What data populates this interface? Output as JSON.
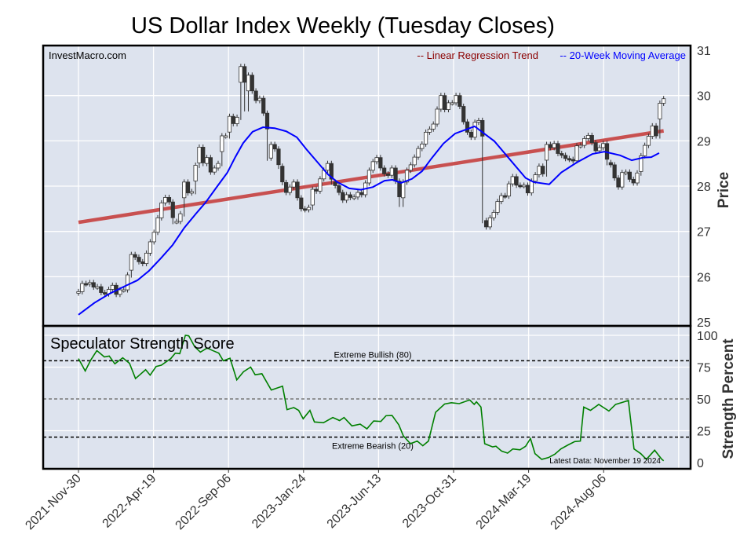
{
  "chart_data": [
    {
      "type": "candlestick",
      "title": "US Dollar Index Weekly (Tuesday Closes)",
      "watermark": "InvestMacro.com",
      "ylabel": "Price",
      "ylim": [
        25,
        31
      ],
      "yticks": [
        "25",
        "26",
        "27",
        "28",
        "29",
        "30",
        "31"
      ],
      "grid": true,
      "legend": {
        "placement": "top-right",
        "entries": [
          {
            "label": "-- Linear Regression Trend",
            "color": "#8b0000"
          },
          {
            "label": "-- 20-Week Moving Average",
            "color": "#0000ff"
          }
        ]
      },
      "x_start": "2021-Nov-30",
      "x_end": "2024-Nov-19",
      "total_weeks": 156,
      "xtick_labels": [
        "2021-Nov-30",
        "2022-Apr-19",
        "2022-Sep-06",
        "2023-Jan-24",
        "2023-Jun-13",
        "2023-Oct-31",
        "2024-Mar-19",
        "2024-Aug-06"
      ],
      "xtick_weeks": [
        0,
        20,
        40,
        60,
        80,
        100,
        120,
        140
      ],
      "weekly_closes": [
        25.67,
        25.85,
        25.84,
        25.87,
        25.77,
        25.78,
        25.65,
        25.62,
        25.72,
        25.81,
        25.61,
        25.71,
        25.71,
        26.04,
        26.49,
        26.43,
        26.33,
        26.29,
        26.52,
        26.77,
        26.98,
        27.3,
        27.63,
        27.75,
        27.65,
        27.22,
        27.22,
        27.39,
        28.09,
        27.85,
        27.88,
        28.46,
        28.86,
        28.5,
        28.63,
        28.31,
        28.4,
        28.5,
        29.11,
        29.11,
        29.54,
        29.38,
        29.52,
        30.64,
        29.71,
        30.45,
        30.1,
        29.89,
        29.94,
        29.61,
        28.62,
        28.92,
        28.82,
        28.44,
        28.08,
        27.86,
        27.98,
        28.09,
        27.74,
        27.5,
        27.48,
        27.53,
        27.93,
        27.89,
        28.16,
        28.35,
        28.5,
        28.09,
        28.01,
        27.86,
        27.69,
        27.81,
        27.75,
        27.76,
        27.86,
        27.81,
        28.07,
        28.35,
        28.54,
        28.63,
        28.4,
        28.27,
        28.24,
        28.4,
        28.11,
        27.6,
        28.09,
        28.35,
        28.47,
        28.64,
        28.83,
        28.93,
        29.19,
        29.26,
        29.37,
        29.7,
        30.0,
        29.69,
        29.84,
        29.84,
        30.0,
        29.76,
        29.42,
        29.19,
        29.08,
        29.41,
        29.45,
        27.24,
        27.1,
        27.3,
        27.42,
        27.66,
        27.79,
        27.78,
        28.05,
        28.21,
        28.02,
        28.01,
        28.02,
        27.85,
        28.11,
        28.25,
        28.44,
        28.27,
        28.92,
        28.85,
        28.94,
        28.72,
        28.68,
        28.61,
        28.59,
        28.56,
        28.89,
        28.9,
        29.05,
        29.12,
        28.96,
        28.78,
        28.85,
        28.94,
        28.52,
        28.47,
        28.18,
        27.98,
        28.3,
        28.31,
        28.15,
        28.07,
        28.29,
        28.67,
        28.9,
        29.1,
        29.33,
        29.11,
        29.83,
        29.93
      ],
      "regression_trend": {
        "start": 27.2,
        "end": 29.22
      },
      "moving_average_20w": [
        [
          0,
          25.16
        ],
        [
          4.2,
          25.42
        ],
        [
          8.4,
          25.63
        ],
        [
          12.6,
          25.8
        ],
        [
          15.7,
          25.92
        ],
        [
          18.8,
          26.13
        ],
        [
          22,
          26.41
        ],
        [
          25.1,
          26.7
        ],
        [
          28.2,
          27.08
        ],
        [
          31.4,
          27.4
        ],
        [
          33.9,
          27.64
        ],
        [
          36.6,
          27.95
        ],
        [
          39.7,
          28.3
        ],
        [
          41.8,
          28.64
        ],
        [
          43.9,
          28.95
        ],
        [
          46.4,
          29.2
        ],
        [
          49.2,
          29.3
        ],
        [
          52.3,
          29.28
        ],
        [
          55.4,
          29.21
        ],
        [
          58.2,
          29.08
        ],
        [
          60.7,
          28.82
        ],
        [
          63.8,
          28.52
        ],
        [
          66.5,
          28.26
        ],
        [
          69,
          28.09
        ],
        [
          72.2,
          27.95
        ],
        [
          75.3,
          27.92
        ],
        [
          78.5,
          27.98
        ],
        [
          81.6,
          28.12
        ],
        [
          83.7,
          28.14
        ],
        [
          86,
          28.07
        ],
        [
          88.9,
          28.16
        ],
        [
          91.6,
          28.33
        ],
        [
          94.1,
          28.61
        ],
        [
          97.3,
          28.94
        ],
        [
          100.4,
          29.16
        ],
        [
          105.6,
          29.32
        ],
        [
          110.9,
          28.99
        ],
        [
          115.1,
          28.58
        ],
        [
          119.2,
          28.18
        ],
        [
          121.3,
          28.09
        ],
        [
          125.5,
          28.04
        ],
        [
          128.7,
          28.3
        ],
        [
          132.8,
          28.52
        ],
        [
          137,
          28.71
        ],
        [
          140.2,
          28.76
        ],
        [
          144.4,
          28.68
        ],
        [
          147.5,
          28.57
        ],
        [
          150.6,
          28.63
        ],
        [
          152.7,
          28.64
        ],
        [
          154.8,
          28.73
        ]
      ]
    },
    {
      "type": "line",
      "title": "Speculator Strength Score",
      "ylabel": "Strength Percent",
      "ylim": [
        0,
        100
      ],
      "yticks": [
        "0",
        "25",
        "50",
        "75",
        "100"
      ],
      "reference_lines": [
        {
          "value": 80,
          "label": "Extreme Bullish (80)"
        },
        {
          "value": 50,
          "label": ""
        },
        {
          "value": 20,
          "label": "Extreme Bearish (20)"
        }
      ],
      "annotation": "Latest Data: November 19 2024",
      "series_color": "#008000",
      "points": [
        [
          0,
          81.7
        ],
        [
          1.8,
          72
        ],
        [
          3.3,
          80.7
        ],
        [
          4.9,
          88
        ],
        [
          6.9,
          83
        ],
        [
          8.2,
          83.7
        ],
        [
          9.7,
          77.6
        ],
        [
          11.8,
          82.3
        ],
        [
          13.6,
          78
        ],
        [
          15.2,
          66
        ],
        [
          17.9,
          73
        ],
        [
          19.1,
          68.7
        ],
        [
          20.7,
          75.5
        ],
        [
          22.1,
          76.5
        ],
        [
          24.6,
          81.7
        ],
        [
          25.8,
          86
        ],
        [
          27,
          85.6
        ],
        [
          28.5,
          100
        ],
        [
          29.4,
          99.6
        ],
        [
          31,
          91
        ],
        [
          32.5,
          86.8
        ],
        [
          34.3,
          90
        ],
        [
          35.8,
          88
        ],
        [
          37.4,
          86
        ],
        [
          38.6,
          80
        ],
        [
          40.4,
          82
        ],
        [
          42.2,
          65
        ],
        [
          44,
          71.4
        ],
        [
          45.9,
          75
        ],
        [
          47.1,
          69
        ],
        [
          48.9,
          69.8
        ],
        [
          51.4,
          57
        ],
        [
          52.8,
          58.4
        ],
        [
          54.4,
          60
        ],
        [
          55.6,
          41.6
        ],
        [
          57.4,
          43.2
        ],
        [
          58.7,
          41
        ],
        [
          59.9,
          34.4
        ],
        [
          61.7,
          41
        ],
        [
          62.9,
          31.9
        ],
        [
          65.3,
          31.3
        ],
        [
          67.8,
          35.4
        ],
        [
          69.6,
          33
        ],
        [
          70.8,
          35.4
        ],
        [
          72.9,
          28.8
        ],
        [
          75.1,
          30.2
        ],
        [
          76.9,
          26.5
        ],
        [
          78.7,
          32.7
        ],
        [
          80.6,
          32.3
        ],
        [
          82,
          36.8
        ],
        [
          83.6,
          37
        ],
        [
          85.4,
          29.6
        ],
        [
          86.6,
          21
        ],
        [
          88.5,
          14.8
        ],
        [
          90.3,
          16.9
        ],
        [
          91.8,
          13.2
        ],
        [
          93.3,
          16.9
        ],
        [
          95.2,
          39.5
        ],
        [
          97.6,
          46
        ],
        [
          99.4,
          47
        ],
        [
          101.5,
          46.3
        ],
        [
          104.3,
          49.2
        ],
        [
          105.5,
          45.7
        ],
        [
          106.1,
          47.7
        ],
        [
          107.3,
          43.6
        ],
        [
          108.3,
          14.8
        ],
        [
          110.4,
          12.3
        ],
        [
          111.3,
          12.8
        ],
        [
          112.8,
          9
        ],
        [
          114.4,
          7.4
        ],
        [
          115.8,
          10.7
        ],
        [
          117.7,
          10
        ],
        [
          119.2,
          12.8
        ],
        [
          120.5,
          18.9
        ],
        [
          121.7,
          7
        ],
        [
          123.5,
          2.5
        ],
        [
          125.3,
          3.9
        ],
        [
          127,
          6.6
        ],
        [
          128.6,
          10.7
        ],
        [
          130.5,
          13.8
        ],
        [
          132.3,
          16.5
        ],
        [
          133.8,
          16.9
        ],
        [
          134.7,
          43.6
        ],
        [
          136.5,
          41
        ],
        [
          138.7,
          45.7
        ],
        [
          141.4,
          40.5
        ],
        [
          143.2,
          45.7
        ],
        [
          145,
          47.3
        ],
        [
          146.6,
          48.8
        ],
        [
          148.1,
          10.7
        ],
        [
          149.9,
          7
        ],
        [
          151.4,
          2.5
        ],
        [
          153.6,
          9.7
        ],
        [
          155.4,
          2.9
        ],
        [
          156,
          1.4
        ]
      ]
    }
  ]
}
